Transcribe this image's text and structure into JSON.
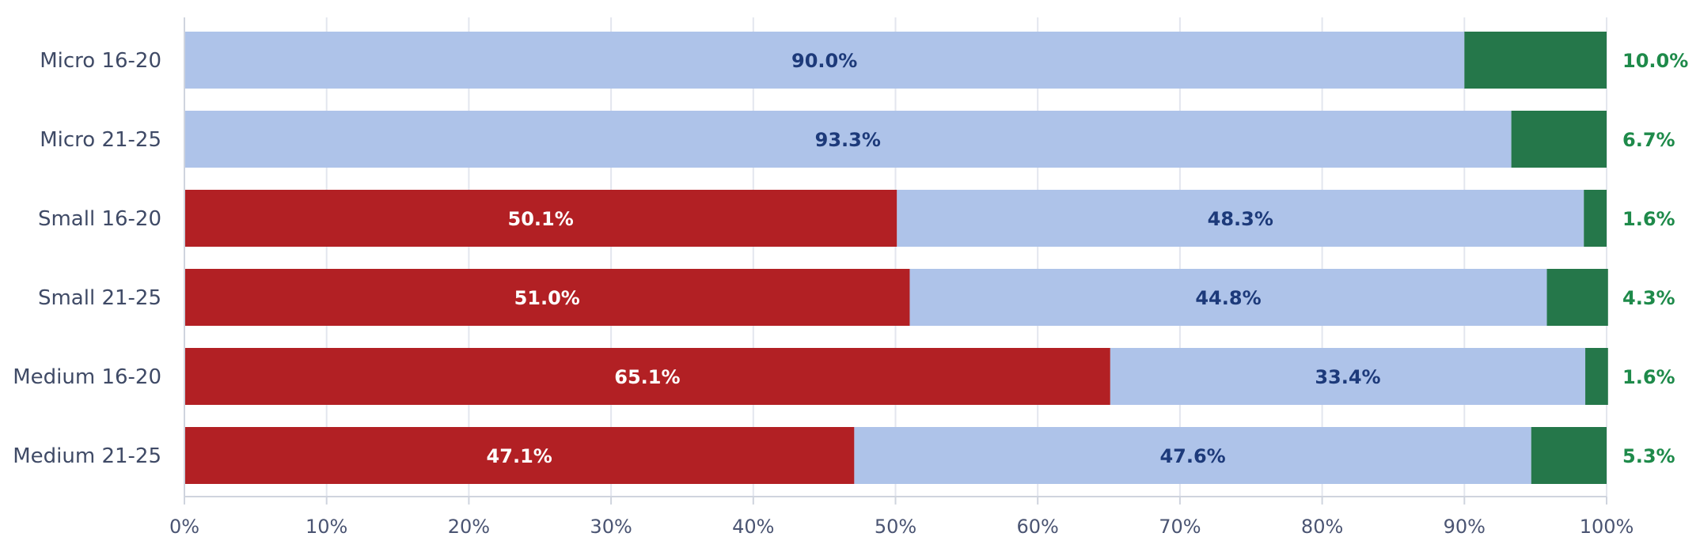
{
  "chart_data": {
    "type": "bar",
    "orientation": "horizontal",
    "stacked": true,
    "categories": [
      "Micro 16-20",
      "Micro 21-25",
      "Small 16-20",
      "Small 21-25",
      "Medium 16-20",
      "Medium 21-25"
    ],
    "series": [
      {
        "values": [
          0,
          0,
          50.1,
          51.0,
          65.1,
          47.1
        ],
        "color": "#b22024",
        "label_color": "#ffffff"
      },
      {
        "values": [
          90.0,
          93.3,
          48.3,
          44.8,
          33.4,
          47.6
        ],
        "color": "#aec3e9",
        "label_color": "#1d3a7a"
      },
      {
        "values": [
          10.0,
          6.7,
          1.6,
          4.3,
          1.6,
          5.3
        ],
        "color": "#25774a",
        "label_color": "#1e8a4a"
      }
    ],
    "data_labels": [
      [
        "",
        "",
        "50.1%",
        "51.0%",
        "65.1%",
        "47.1%"
      ],
      [
        "90.0%",
        "93.3%",
        "48.3%",
        "44.8%",
        "33.4%",
        "47.6%"
      ],
      [
        "10.0%",
        "6.7%",
        "1.6%",
        "4.3%",
        "1.6%",
        "5.3%"
      ]
    ],
    "xticks": [
      "0%",
      "10%",
      "20%",
      "30%",
      "40%",
      "50%",
      "60%",
      "70%",
      "80%",
      "90%",
      "100%"
    ],
    "xlim": [
      0,
      100
    ],
    "title": "",
    "xlabel": "",
    "ylabel": "",
    "grid": true,
    "legend": "none"
  }
}
